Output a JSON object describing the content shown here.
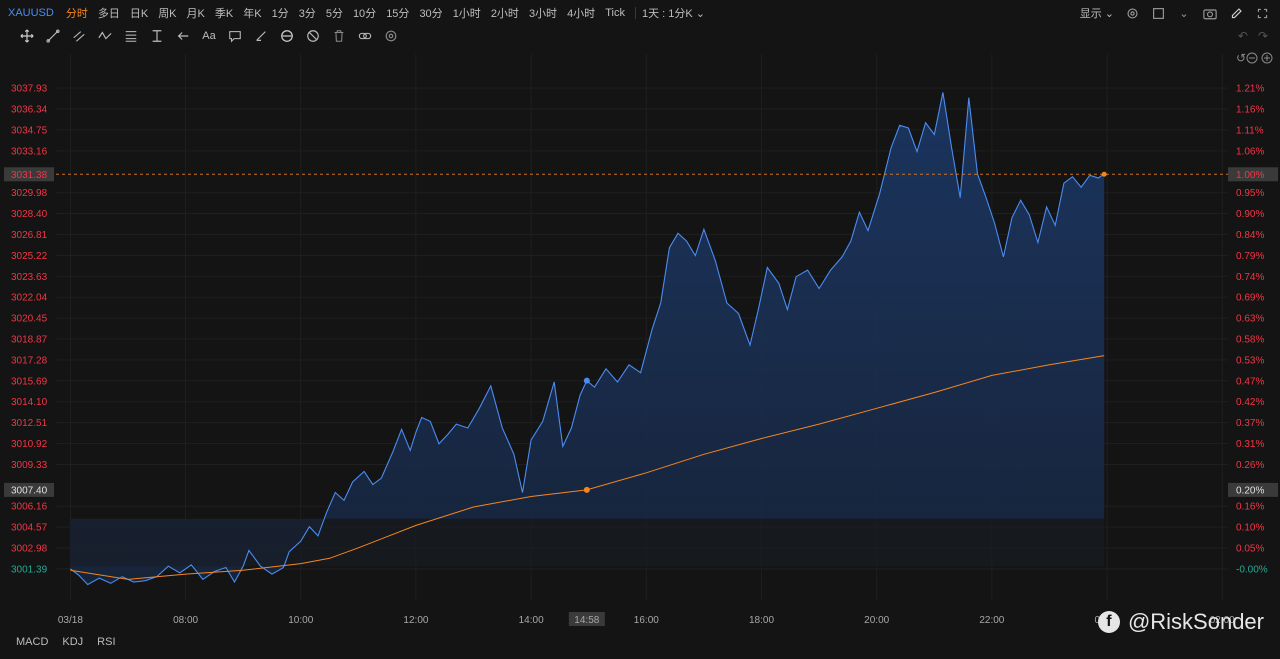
{
  "symbol": "XAUUSD",
  "timeframes": [
    "分时",
    "多日",
    "日K",
    "周K",
    "月K",
    "季K",
    "年K",
    "1分",
    "3分",
    "5分",
    "10分",
    "15分",
    "30分",
    "1小时",
    "2小时",
    "3小时",
    "4小时",
    "Tick"
  ],
  "active_timeframe": "分时",
  "range_selector": "1天 : 1分K",
  "display_label": "显示",
  "font_tool_label": "Aa",
  "indicators": [
    "MACD",
    "KDJ",
    "RSI"
  ],
  "watermark": "@RiskSonder",
  "colors": {
    "price": "#4a8cf2",
    "avg": "#f5861f",
    "up": "#f23645",
    "down": "#22ab94",
    "last_price": "#f5861f"
  },
  "chart_data": {
    "type": "line",
    "x_labels": [
      "03/18",
      "08:00",
      "10:00",
      "12:00",
      "14:00",
      "14:58",
      "16:00",
      "18:00",
      "20:00",
      "22:00",
      "00:00",
      "02:00"
    ],
    "x_label_hours": [
      6.0,
      8.0,
      10.0,
      12.0,
      14.0,
      14.967,
      16.0,
      18.0,
      20.0,
      22.0,
      24.0,
      26.0
    ],
    "xlim_hours": [
      5.75,
      26.1
    ],
    "y_ticks": [
      "3037.93",
      "3036.34",
      "3034.75",
      "3033.16",
      "3031.38",
      "3029.98",
      "3028.40",
      "3026.81",
      "3025.22",
      "3023.63",
      "3022.04",
      "3020.45",
      "3018.87",
      "3017.28",
      "3015.69",
      "3014.10",
      "3012.51",
      "3010.92",
      "3009.33",
      "3007.40",
      "3006.16",
      "3004.57",
      "3002.98",
      "3001.39"
    ],
    "y_ticks_right": [
      "1.21%",
      "1.16%",
      "1.11%",
      "1.06%",
      "1.00%",
      "0.95%",
      "0.90%",
      "0.84%",
      "0.79%",
      "0.74%",
      "0.69%",
      "0.63%",
      "0.58%",
      "0.53%",
      "0.47%",
      "0.42%",
      "0.37%",
      "0.31%",
      "0.26%",
      "0.20%",
      "0.16%",
      "0.10%",
      "0.05%",
      "-0.00%"
    ],
    "ylim": [
      3000.4,
      3039.0
    ],
    "last_price": "3031.38",
    "last_change": "1.00%",
    "crosshair_price": "3007.40",
    "crosshair_change": "0.20%",
    "crosshair_time": "14:58",
    "crosshair_hour": 14.967,
    "series": [
      {
        "name": "price",
        "points": [
          [
            6.0,
            3001.4
          ],
          [
            6.15,
            3000.9
          ],
          [
            6.3,
            3000.2
          ],
          [
            6.5,
            3000.7
          ],
          [
            6.7,
            3000.3
          ],
          [
            6.9,
            3000.8
          ],
          [
            7.1,
            3000.4
          ],
          [
            7.3,
            3000.5
          ],
          [
            7.5,
            3000.8
          ],
          [
            7.7,
            3001.6
          ],
          [
            7.9,
            3001.1
          ],
          [
            8.1,
            3001.7
          ],
          [
            8.3,
            3000.6
          ],
          [
            8.5,
            3001.2
          ],
          [
            8.7,
            3001.5
          ],
          [
            8.85,
            3000.4
          ],
          [
            9.0,
            3001.6
          ],
          [
            9.1,
            3002.8
          ],
          [
            9.3,
            3001.6
          ],
          [
            9.5,
            3001.0
          ],
          [
            9.7,
            3001.5
          ],
          [
            9.8,
            3002.7
          ],
          [
            10.0,
            3003.5
          ],
          [
            10.15,
            3004.6
          ],
          [
            10.3,
            3003.9
          ],
          [
            10.45,
            3005.7
          ],
          [
            10.6,
            3007.2
          ],
          [
            10.75,
            3006.6
          ],
          [
            10.9,
            3008.0
          ],
          [
            11.1,
            3008.8
          ],
          [
            11.25,
            3007.8
          ],
          [
            11.4,
            3008.3
          ],
          [
            11.6,
            3010.3
          ],
          [
            11.75,
            3012.0
          ],
          [
            11.9,
            3010.4
          ],
          [
            12.0,
            3011.8
          ],
          [
            12.1,
            3012.9
          ],
          [
            12.25,
            3012.6
          ],
          [
            12.4,
            3010.9
          ],
          [
            12.55,
            3011.6
          ],
          [
            12.7,
            3012.4
          ],
          [
            12.9,
            3012.1
          ],
          [
            13.1,
            3013.6
          ],
          [
            13.3,
            3015.3
          ],
          [
            13.5,
            3012.1
          ],
          [
            13.7,
            3010.1
          ],
          [
            13.85,
            3007.2
          ],
          [
            14.0,
            3011.2
          ],
          [
            14.2,
            3012.6
          ],
          [
            14.4,
            3015.6
          ],
          [
            14.55,
            3010.7
          ],
          [
            14.7,
            3012.1
          ],
          [
            14.85,
            3014.6
          ],
          [
            14.967,
            3015.7
          ],
          [
            15.1,
            3015.2
          ],
          [
            15.3,
            3016.6
          ],
          [
            15.5,
            3015.6
          ],
          [
            15.7,
            3016.9
          ],
          [
            15.9,
            3016.3
          ],
          [
            16.1,
            3019.6
          ],
          [
            16.25,
            3021.6
          ],
          [
            16.4,
            3025.8
          ],
          [
            16.55,
            3026.9
          ],
          [
            16.7,
            3026.3
          ],
          [
            16.85,
            3025.2
          ],
          [
            17.0,
            3027.2
          ],
          [
            17.2,
            3024.8
          ],
          [
            17.4,
            3021.6
          ],
          [
            17.6,
            3020.8
          ],
          [
            17.8,
            3018.4
          ],
          [
            17.95,
            3021.2
          ],
          [
            18.1,
            3024.3
          ],
          [
            18.3,
            3023.1
          ],
          [
            18.45,
            3021.1
          ],
          [
            18.6,
            3023.6
          ],
          [
            18.8,
            3024.1
          ],
          [
            19.0,
            3022.7
          ],
          [
            19.2,
            3024.1
          ],
          [
            19.4,
            3025.1
          ],
          [
            19.55,
            3026.3
          ],
          [
            19.7,
            3028.5
          ],
          [
            19.85,
            3027.1
          ],
          [
            20.05,
            3029.9
          ],
          [
            20.25,
            3033.4
          ],
          [
            20.4,
            3035.1
          ],
          [
            20.55,
            3034.9
          ],
          [
            20.7,
            3033.1
          ],
          [
            20.85,
            3035.3
          ],
          [
            21.0,
            3034.4
          ],
          [
            21.15,
            3037.6
          ],
          [
            21.3,
            3033.4
          ],
          [
            21.45,
            3029.6
          ],
          [
            21.6,
            3037.2
          ],
          [
            21.75,
            3031.4
          ],
          [
            21.9,
            3029.6
          ],
          [
            22.05,
            3027.6
          ],
          [
            22.2,
            3025.1
          ],
          [
            22.35,
            3028.1
          ],
          [
            22.5,
            3029.4
          ],
          [
            22.65,
            3028.3
          ],
          [
            22.8,
            3026.2
          ],
          [
            22.95,
            3028.9
          ],
          [
            23.1,
            3027.5
          ],
          [
            23.25,
            3030.7
          ],
          [
            23.4,
            3031.2
          ],
          [
            23.55,
            3030.4
          ],
          [
            23.7,
            3031.3
          ],
          [
            23.85,
            3031.1
          ],
          [
            23.95,
            3031.4
          ]
        ]
      },
      {
        "name": "avg",
        "points": [
          [
            6.0,
            3001.3
          ],
          [
            7.0,
            3000.6
          ],
          [
            8.0,
            3001.0
          ],
          [
            9.0,
            3001.3
          ],
          [
            10.0,
            3001.8
          ],
          [
            10.5,
            3002.2
          ],
          [
            11.0,
            3003.0
          ],
          [
            12.0,
            3004.7
          ],
          [
            13.0,
            3006.1
          ],
          [
            14.0,
            3006.9
          ],
          [
            14.967,
            3007.4
          ],
          [
            16.0,
            3008.7
          ],
          [
            17.0,
            3010.1
          ],
          [
            18.0,
            3011.3
          ],
          [
            19.0,
            3012.4
          ],
          [
            20.0,
            3013.6
          ],
          [
            21.0,
            3014.8
          ],
          [
            22.0,
            3016.1
          ],
          [
            23.0,
            3016.9
          ],
          [
            23.95,
            3017.6
          ]
        ]
      }
    ]
  }
}
